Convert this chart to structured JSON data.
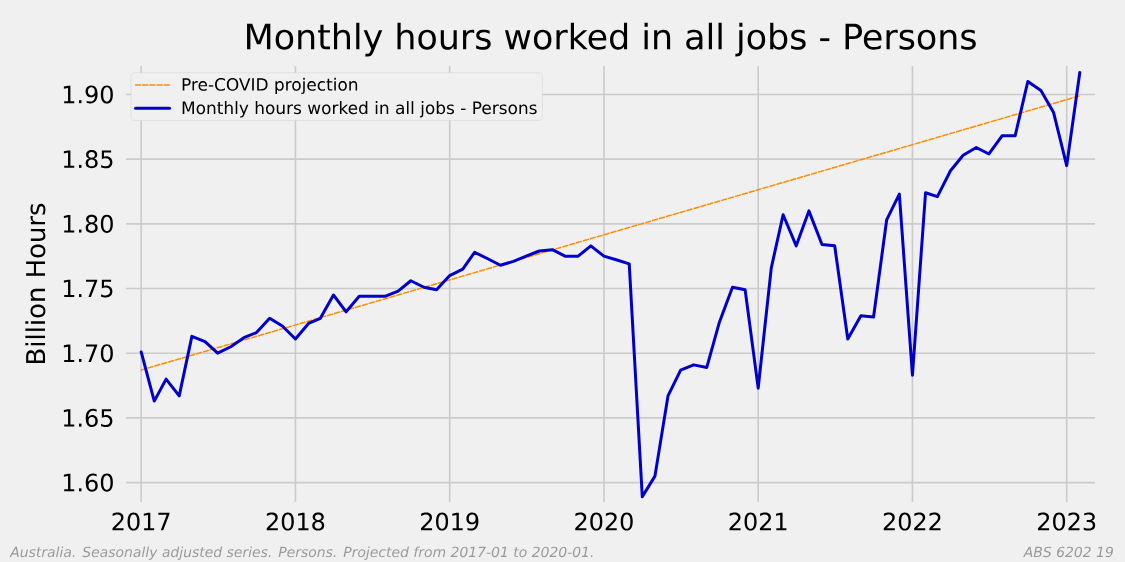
{
  "chart_data": {
    "type": "line",
    "title": "Monthly hours worked in all jobs - Persons",
    "ylabel": "Billion Hours",
    "annotations": [
      "Australia. Seasonally adjusted series. Persons. Projected from 2017-01 to 2020-01.",
      "ABS 6202 19"
    ],
    "x": [
      "2017-01",
      "2017-02",
      "2017-03",
      "2017-04",
      "2017-05",
      "2017-06",
      "2017-07",
      "2017-08",
      "2017-09",
      "2017-10",
      "2017-11",
      "2017-12",
      "2018-01",
      "2018-02",
      "2018-03",
      "2018-04",
      "2018-05",
      "2018-06",
      "2018-07",
      "2018-08",
      "2018-09",
      "2018-10",
      "2018-11",
      "2018-12",
      "2019-01",
      "2019-02",
      "2019-03",
      "2019-04",
      "2019-05",
      "2019-06",
      "2019-07",
      "2019-08",
      "2019-09",
      "2019-10",
      "2019-11",
      "2019-12",
      "2020-01",
      "2020-02",
      "2020-03",
      "2020-04",
      "2020-05",
      "2020-06",
      "2020-07",
      "2020-08",
      "2020-09",
      "2020-10",
      "2020-11",
      "2020-12",
      "2021-01",
      "2021-02",
      "2021-03",
      "2021-04",
      "2021-05",
      "2021-06",
      "2021-07",
      "2021-08",
      "2021-09",
      "2021-10",
      "2021-11",
      "2021-12",
      "2022-01",
      "2022-02",
      "2022-03",
      "2022-04",
      "2022-05",
      "2022-06",
      "2022-07",
      "2022-08",
      "2022-09",
      "2022-10",
      "2022-11",
      "2022-12",
      "2023-01",
      "2023-02"
    ],
    "series": [
      {
        "name": "Pre-COVID projection",
        "color": "#ff8c00",
        "line_style": "dashed",
        "x": [
          "2017-01",
          "2023-02"
        ],
        "values": [
          1.687,
          1.899
        ]
      },
      {
        "name": "Monthly hours worked in all jobs - Persons",
        "color": "#0000cd",
        "line_style": "solid",
        "values": [
          1.701,
          1.663,
          1.68,
          1.667,
          1.713,
          1.709,
          1.7,
          1.705,
          1.712,
          1.716,
          1.727,
          1.721,
          1.711,
          1.723,
          1.727,
          1.745,
          1.732,
          1.744,
          1.744,
          1.744,
          1.748,
          1.756,
          1.751,
          1.749,
          1.76,
          1.765,
          1.778,
          1.773,
          1.768,
          1.771,
          1.775,
          1.779,
          1.78,
          1.775,
          1.775,
          1.783,
          1.775,
          1.772,
          1.769,
          1.589,
          1.605,
          1.667,
          1.687,
          1.691,
          1.689,
          1.724,
          1.751,
          1.749,
          1.673,
          1.766,
          1.807,
          1.783,
          1.81,
          1.784,
          1.783,
          1.711,
          1.729,
          1.728,
          1.803,
          1.823,
          1.683,
          1.824,
          1.821,
          1.841,
          1.853,
          1.859,
          1.854,
          1.868,
          1.868,
          1.91,
          1.903,
          1.886,
          1.845,
          1.917
        ]
      }
    ],
    "xlim": [
      "2016-11-26",
      "2023-03-09"
    ],
    "ylim": [
      1.585,
      1.922
    ],
    "xticks": [
      "2017",
      "2018",
      "2019",
      "2020",
      "2021",
      "2022",
      "2023"
    ],
    "yticks": [
      {
        "value": 1.6,
        "label": "1.60"
      },
      1.65,
      {
        "value": 1.7,
        "label": "1.70"
      },
      1.75,
      {
        "value": 1.8,
        "label": "1.80"
      },
      1.85,
      {
        "value": 1.9,
        "label": "1.90"
      }
    ],
    "grid": true,
    "legend": "top left",
    "marker": "none"
  }
}
